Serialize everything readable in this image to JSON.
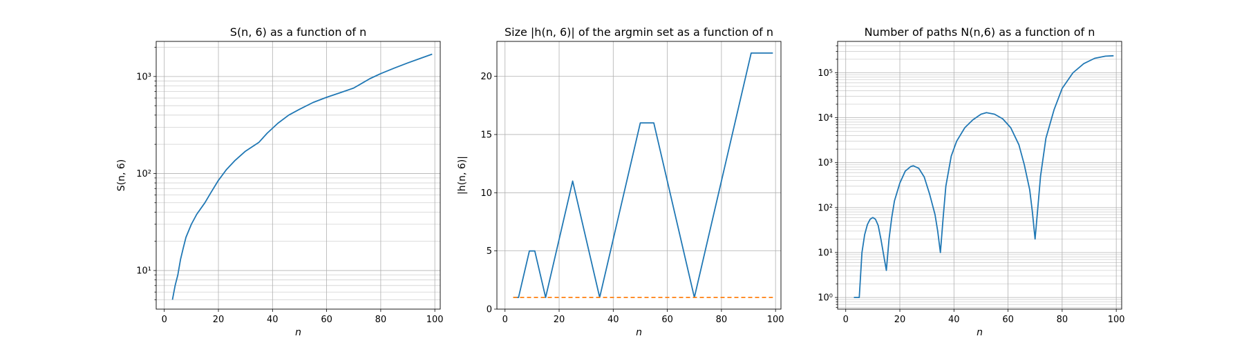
{
  "chart_data": [
    {
      "type": "line",
      "title": "S(n, 6) as a function of n",
      "xlabel": "n",
      "ylabel": "S(n, 6)",
      "yscale": "log",
      "xlim": [
        -3,
        102
      ],
      "ylim": [
        4,
        2300
      ],
      "grid": "both",
      "xticks": [
        0,
        20,
        40,
        60,
        80,
        100
      ],
      "yticks": [
        {
          "value": 10,
          "label": "10¹"
        },
        {
          "value": 100,
          "label": "10²"
        },
        {
          "value": 1000,
          "label": "10³"
        }
      ],
      "series": [
        {
          "color": "#1f77b4",
          "dash": "",
          "x": [
            3,
            4,
            5,
            6,
            7,
            8,
            10,
            12,
            15,
            17,
            20,
            23,
            26,
            30,
            35,
            38,
            42,
            46,
            50,
            55,
            60,
            65,
            70,
            73,
            76,
            80,
            85,
            90,
            95,
            99
          ],
          "y": [
            5,
            7,
            9,
            13,
            17,
            22,
            30,
            38,
            50,
            62,
            85,
            110,
            135,
            170,
            210,
            260,
            330,
            400,
            460,
            540,
            610,
            680,
            760,
            850,
            950,
            1070,
            1220,
            1380,
            1550,
            1700
          ]
        }
      ]
    },
    {
      "type": "line",
      "title": "Size |h(n, 6)| of the argmin set as a function of n",
      "xlabel": "n",
      "ylabel": "|h(n, 6)|",
      "yscale": "linear",
      "xlim": [
        -3,
        102
      ],
      "ylim": [
        0,
        23
      ],
      "grid": "major",
      "xticks": [
        0,
        20,
        40,
        60,
        80,
        100
      ],
      "yticks": [
        {
          "value": 0,
          "label": "0"
        },
        {
          "value": 5,
          "label": "5"
        },
        {
          "value": 10,
          "label": "10"
        },
        {
          "value": 15,
          "label": "15"
        },
        {
          "value": 20,
          "label": "20"
        }
      ],
      "series": [
        {
          "color": "#1f77b4",
          "dash": "",
          "x": [
            3,
            5,
            9,
            11,
            15,
            25,
            35,
            50,
            55,
            70,
            91,
            99
          ],
          "y": [
            1,
            1,
            5,
            5,
            1,
            11,
            1,
            16,
            16,
            1,
            22,
            22
          ]
        },
        {
          "color": "#ff7f0e",
          "dash": "6,4",
          "x": [
            3,
            99
          ],
          "y": [
            1,
            1
          ]
        }
      ]
    },
    {
      "type": "line",
      "title": "Number of paths N(n,6) as a function of n",
      "xlabel": "n",
      "ylabel": "",
      "yscale": "log",
      "xlim": [
        -3,
        102
      ],
      "ylim": [
        0.55,
        500000
      ],
      "grid": "both",
      "xticks": [
        0,
        20,
        40,
        60,
        80,
        100
      ],
      "yticks": [
        {
          "value": 1,
          "label": "10⁰"
        },
        {
          "value": 10,
          "label": "10¹"
        },
        {
          "value": 100,
          "label": "10²"
        },
        {
          "value": 1000,
          "label": "10³"
        },
        {
          "value": 10000,
          "label": "10⁴"
        },
        {
          "value": 100000,
          "label": "10⁵"
        }
      ],
      "series": [
        {
          "color": "#1f77b4",
          "dash": "",
          "x": [
            3,
            5,
            6,
            7,
            8,
            9,
            10,
            11,
            12,
            13,
            14,
            15,
            16,
            17,
            18,
            20,
            22,
            24,
            25,
            27,
            29,
            31,
            33,
            34,
            35,
            36,
            37,
            39,
            41,
            44,
            47,
            50,
            52,
            55,
            58,
            61,
            64,
            66,
            68,
            69,
            70,
            71,
            72,
            74,
            77,
            80,
            84,
            88,
            92,
            96,
            99
          ],
          "y": [
            1,
            1,
            10,
            25,
            42,
            55,
            60,
            55,
            40,
            20,
            9,
            4,
            20,
            60,
            140,
            350,
            650,
            820,
            850,
            750,
            480,
            200,
            70,
            30,
            10,
            60,
            300,
            1400,
            3000,
            6000,
            9000,
            12000,
            13000,
            12000,
            9500,
            6000,
            2500,
            900,
            250,
            80,
            20,
            100,
            500,
            3500,
            15000,
            45000,
            100000,
            160000,
            210000,
            235000,
            240000
          ]
        }
      ]
    }
  ]
}
